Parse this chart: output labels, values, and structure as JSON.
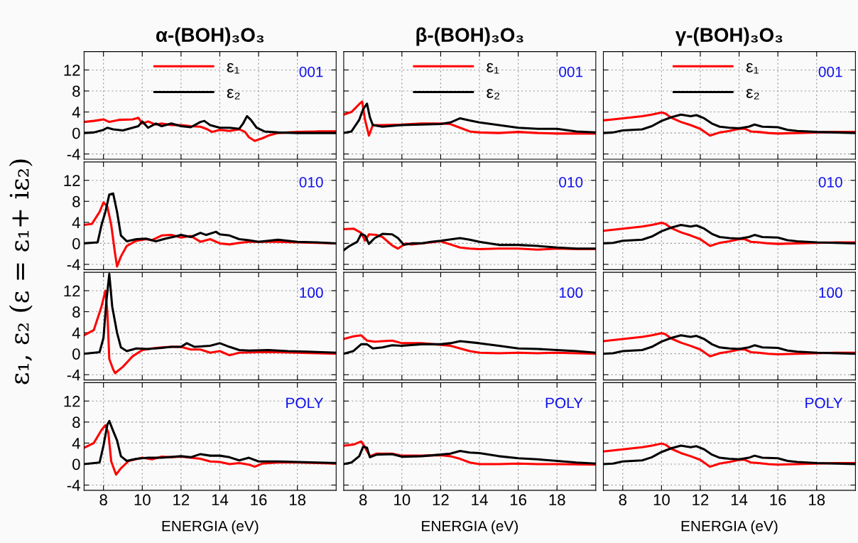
{
  "chart_data": [
    {
      "type": "line",
      "title": "α-(BOH)₃O₃",
      "ylabel": "ε₁, ε₂ (ε = ε₁+ iε₂)",
      "annotations": [
        "001"
      ],
      "xlim": [
        7,
        20
      ],
      "xticks": [
        8,
        10,
        12,
        14,
        16,
        18
      ],
      "ylim": [
        -5,
        15.5
      ],
      "yticks": [
        -4,
        0,
        4,
        8,
        12
      ],
      "grid": true,
      "legend": "top",
      "tick_labels": "y",
      "series": [
        {
          "name": "ε₁",
          "color": "#ff0000",
          "x": [
            7,
            7.5,
            8,
            8.3,
            8.8,
            9.5,
            9.8,
            10,
            10.3,
            10.7,
            11,
            11.5,
            12,
            12.5,
            13,
            13.3,
            13.6,
            14,
            14.5,
            15,
            15.3,
            15.5,
            15.8,
            16.2,
            16.5,
            17,
            18,
            19,
            20
          ],
          "values": [
            2.1,
            2.3,
            2.6,
            2.1,
            2.5,
            2.6,
            2.9,
            1.8,
            2.2,
            1.6,
            1.8,
            1.5,
            1.5,
            1.3,
            1.2,
            0.8,
            0.2,
            0.6,
            0.4,
            0.7,
            0.2,
            -0.8,
            -1.5,
            -1.0,
            -0.5,
            0,
            0.2,
            0.3,
            0.3
          ]
        },
        {
          "name": "ε₂",
          "color": "#000000",
          "x": [
            7,
            7.5,
            8,
            8.2,
            8.5,
            9,
            9.5,
            9.8,
            10,
            10.3,
            10.7,
            11,
            11.5,
            12,
            12.5,
            13,
            13.2,
            13.5,
            14,
            14.5,
            15,
            15.2,
            15.4,
            15.6,
            15.9,
            16.3,
            17,
            18,
            20
          ],
          "values": [
            0,
            0.1,
            0.6,
            1.0,
            0.7,
            0.5,
            1.0,
            1.3,
            2.2,
            1.0,
            1.8,
            1.3,
            1.8,
            1.3,
            1.1,
            2.1,
            2.3,
            1.5,
            1.0,
            1.0,
            0.8,
            1.8,
            3.2,
            2.5,
            1.0,
            0.3,
            0.1,
            0,
            0
          ]
        }
      ]
    },
    {
      "type": "line",
      "title": "β-(BOH)₃O₃",
      "annotations": [
        "001"
      ],
      "xlim": [
        7,
        20
      ],
      "xticks": [
        8,
        10,
        12,
        14,
        16,
        18
      ],
      "ylim": [
        -5,
        15.5
      ],
      "yticks": [
        -4,
        0,
        4,
        8,
        12
      ],
      "grid": true,
      "legend": "top",
      "tick_labels": false,
      "series": [
        {
          "name": "ε₁",
          "color": "#ff0000",
          "x": [
            7,
            7.4,
            7.8,
            7.95,
            8.1,
            8.3,
            8.5,
            9,
            10,
            11,
            12,
            12.5,
            13,
            13.5,
            14,
            15,
            16,
            17,
            18,
            19,
            20
          ],
          "values": [
            3.5,
            4.0,
            5.5,
            6.0,
            2.5,
            -0.5,
            1.5,
            1.5,
            1.6,
            1.8,
            1.8,
            1.7,
            1.0,
            0.3,
            0.1,
            0,
            0.2,
            0,
            -0.1,
            -0.1,
            -0.1
          ]
        },
        {
          "name": "ε₂",
          "color": "#000000",
          "x": [
            7,
            7.4,
            7.8,
            8.0,
            8.2,
            8.35,
            8.5,
            9,
            10,
            11,
            12,
            12.5,
            13,
            13.5,
            14,
            15,
            16,
            17,
            18,
            19,
            20
          ],
          "values": [
            0,
            0.3,
            2.5,
            4.5,
            5.6,
            3,
            1.5,
            1.2,
            1.5,
            1.6,
            1.7,
            2.0,
            2.8,
            2.4,
            2.0,
            1.5,
            1.0,
            0.8,
            0.8,
            0.3,
            0.1
          ]
        }
      ]
    },
    {
      "type": "line",
      "title": "γ-(BOH)₃O₃",
      "annotations": [
        "001"
      ],
      "xlim": [
        7,
        20
      ],
      "xticks": [
        8,
        10,
        12,
        14,
        16,
        18
      ],
      "ylim": [
        -5,
        15.5
      ],
      "yticks": [
        -4,
        0,
        4,
        8,
        12
      ],
      "grid": true,
      "legend": "top",
      "tick_labels": false,
      "series": [
        {
          "name": "ε₁",
          "color": "#ff0000",
          "x": [
            7,
            7.5,
            8,
            8.5,
            9,
            9.5,
            10,
            10.2,
            10.5,
            11,
            11.5,
            12,
            12.5,
            13,
            13.5,
            14,
            14.3,
            14.6,
            15,
            15.5,
            16,
            17,
            18,
            19,
            20
          ],
          "values": [
            2.4,
            2.6,
            2.8,
            3.0,
            3.2,
            3.5,
            3.9,
            3.7,
            2.9,
            2.1,
            1.5,
            0.8,
            -0.5,
            0.1,
            0.4,
            0.8,
            0.8,
            0.3,
            0.2,
            0.0,
            -0.1,
            0,
            0.1,
            0.2,
            0.2
          ]
        },
        {
          "name": "ε₂",
          "color": "#000000",
          "x": [
            7,
            7.5,
            8,
            8.5,
            9,
            9.5,
            10,
            10.5,
            11,
            11.5,
            11.8,
            12.2,
            12.6,
            13,
            13.5,
            14,
            14.5,
            14.8,
            15.2,
            16,
            16.5,
            17,
            18,
            19,
            20
          ],
          "values": [
            0,
            0.1,
            0.5,
            0.6,
            0.7,
            1.3,
            2.3,
            3.0,
            3.5,
            3.2,
            3.4,
            2.8,
            1.8,
            1.2,
            1.0,
            0.9,
            1.2,
            1.6,
            1.2,
            1.1,
            0.6,
            0.4,
            0.2,
            0.1,
            0
          ]
        }
      ]
    },
    {
      "type": "line",
      "annotations": [
        "010"
      ],
      "xlim": [
        7,
        20
      ],
      "xticks": [
        8,
        10,
        12,
        14,
        16,
        18
      ],
      "ylim": [
        -5,
        15.5
      ],
      "yticks": [
        -4,
        0,
        4,
        8,
        12
      ],
      "grid": true,
      "tick_labels": "y",
      "series": [
        {
          "color": "#ff0000",
          "x": [
            7,
            7.4,
            7.8,
            8.0,
            8.2,
            8.4,
            8.6,
            8.7,
            8.9,
            9.2,
            9.7,
            10.2,
            10.5,
            11,
            11.5,
            12,
            12.5,
            13,
            13.5,
            14,
            14.5,
            15,
            15.5,
            16,
            17,
            18,
            20
          ],
          "values": [
            3.5,
            3.7,
            6.0,
            7.8,
            7.0,
            3.5,
            -2.0,
            -4.4,
            -2.5,
            -0.5,
            0.5,
            0.8,
            0.6,
            1.5,
            1.6,
            1.1,
            1.4,
            0.3,
            0.8,
            0,
            -0.2,
            0.1,
            0.3,
            0.3,
            0.3,
            0.2,
            0
          ]
        },
        {
          "color": "#000000",
          "x": [
            7,
            7.7,
            7.9,
            8.1,
            8.3,
            8.5,
            8.7,
            8.9,
            9.2,
            9.7,
            10.2,
            10.7,
            11.2,
            11.7,
            12,
            12.5,
            13,
            13.3,
            13.8,
            14,
            14.5,
            15,
            15.5,
            16,
            17,
            18,
            19,
            20
          ],
          "values": [
            0,
            0.2,
            3.5,
            6,
            9.3,
            9.5,
            6,
            1.5,
            0.4,
            0.8,
            0.9,
            0.4,
            0.9,
            1.3,
            1.6,
            1.2,
            2.0,
            1.6,
            2.2,
            1.7,
            1.5,
            0.8,
            0.6,
            0.3,
            0.7,
            0.3,
            0.2,
            0
          ]
        }
      ]
    },
    {
      "type": "line",
      "annotations": [
        "010"
      ],
      "xlim": [
        7,
        20
      ],
      "xticks": [
        8,
        10,
        12,
        14,
        16,
        18
      ],
      "ylim": [
        -5,
        15.5
      ],
      "yticks": [
        -4,
        0,
        4,
        8,
        12
      ],
      "grid": true,
      "tick_labels": false,
      "series": [
        {
          "color": "#ff0000",
          "x": [
            7,
            7.5,
            7.9,
            8.1,
            8.3,
            8.7,
            9,
            9.5,
            9.8,
            10.2,
            10.5,
            11,
            11.5,
            12,
            12.5,
            13,
            13.5,
            14,
            15,
            16,
            17,
            18,
            19,
            20
          ],
          "values": [
            2.7,
            2.8,
            2.0,
            0.5,
            1.7,
            1.6,
            1.2,
            -0.4,
            -1.0,
            0,
            -0.2,
            0,
            0.2,
            0.4,
            -0.2,
            -0.8,
            -1.0,
            -1.1,
            -1.0,
            -1.0,
            -1.2,
            -1.0,
            -1.1,
            -1.1
          ]
        },
        {
          "color": "#000000",
          "x": [
            7,
            7.3,
            7.7,
            7.9,
            8.1,
            8.3,
            8.6,
            9,
            9.5,
            9.8,
            10.1,
            10.5,
            11,
            11.5,
            12,
            12.6,
            13,
            13.5,
            14,
            15,
            16,
            17,
            18,
            19,
            20
          ],
          "values": [
            -1.3,
            -0.5,
            0.3,
            1.8,
            1.5,
            -0.1,
            1.0,
            1.8,
            1.7,
            1.0,
            -0.3,
            0,
            0,
            0.3,
            0.5,
            0.8,
            1.0,
            0.7,
            0.3,
            -0.3,
            -0.3,
            -0.5,
            -0.8,
            -1.0,
            -1.0
          ]
        }
      ]
    },
    {
      "type": "line",
      "annotations": [
        "010"
      ],
      "xlim": [
        7,
        20
      ],
      "xticks": [
        8,
        10,
        12,
        14,
        16,
        18
      ],
      "ylim": [
        -5,
        15.5
      ],
      "yticks": [
        -4,
        0,
        4,
        8,
        12
      ],
      "grid": true,
      "tick_labels": false,
      "series": [
        {
          "color": "#ff0000",
          "x": [
            7,
            7.5,
            8,
            8.5,
            9,
            9.5,
            10,
            10.2,
            10.5,
            11,
            11.5,
            12,
            12.5,
            13,
            13.5,
            14,
            14.3,
            14.6,
            15,
            15.5,
            16,
            17,
            18,
            19,
            20
          ],
          "values": [
            2.4,
            2.6,
            2.8,
            3.0,
            3.2,
            3.5,
            3.9,
            3.7,
            2.9,
            2.1,
            1.5,
            0.8,
            -0.5,
            0.1,
            0.4,
            0.8,
            0.8,
            0.3,
            0.2,
            0.0,
            -0.1,
            0,
            0.1,
            0.2,
            0.2
          ]
        },
        {
          "color": "#000000",
          "x": [
            7,
            7.5,
            8,
            8.5,
            9,
            9.5,
            10,
            10.5,
            11,
            11.5,
            11.8,
            12.2,
            12.6,
            13,
            13.5,
            14,
            14.5,
            14.8,
            15.2,
            16,
            16.5,
            17,
            18,
            19,
            20
          ],
          "values": [
            0,
            0.1,
            0.5,
            0.6,
            0.7,
            1.3,
            2.3,
            3.0,
            3.5,
            3.2,
            3.4,
            2.8,
            1.8,
            1.2,
            1.0,
            0.9,
            1.2,
            1.6,
            1.2,
            1.1,
            0.6,
            0.4,
            0.2,
            0.1,
            0
          ]
        }
      ]
    },
    {
      "type": "line",
      "annotations": [
        "100"
      ],
      "xlim": [
        7,
        20
      ],
      "xticks": [
        8,
        10,
        12,
        14,
        16,
        18
      ],
      "ylim": [
        -5,
        15.5
      ],
      "yticks": [
        -4,
        0,
        4,
        8,
        12
      ],
      "grid": true,
      "tick_labels": "y",
      "series": [
        {
          "color": "#ff0000",
          "x": [
            7,
            7.5,
            7.9,
            8.1,
            8.2,
            8.3,
            8.5,
            8.6,
            9.0,
            9.5,
            10,
            10.5,
            11,
            11.5,
            12,
            12.5,
            13,
            13.5,
            14,
            14.5,
            15,
            16,
            17,
            18,
            20
          ],
          "values": [
            3.5,
            4.5,
            9.0,
            12,
            8,
            -1.0,
            -3.0,
            -3.7,
            -2.5,
            -0.5,
            0.7,
            1.0,
            1.2,
            1.3,
            1.3,
            0.8,
            0.8,
            0.2,
            0.5,
            -0.3,
            0.2,
            0.3,
            0.3,
            0.2,
            0
          ]
        },
        {
          "color": "#000000",
          "x": [
            7,
            7.8,
            8.0,
            8.15,
            8.3,
            8.45,
            8.7,
            8.9,
            9.2,
            9.7,
            10.3,
            11,
            11.5,
            12,
            12.3,
            12.7,
            13.5,
            14,
            14.5,
            15,
            15.5,
            16.5,
            17.5,
            18.5,
            20
          ],
          "values": [
            0,
            0.3,
            3,
            10,
            15.2,
            9,
            4,
            1.2,
            0.5,
            1.0,
            0.9,
            1.1,
            1.3,
            1.3,
            2.0,
            1.3,
            1.5,
            2.0,
            1.3,
            0.7,
            0.6,
            0.7,
            0.5,
            0.4,
            0.2
          ]
        }
      ]
    },
    {
      "type": "line",
      "annotations": [
        "100"
      ],
      "xlim": [
        7,
        20
      ],
      "xticks": [
        8,
        10,
        12,
        14,
        16,
        18
      ],
      "ylim": [
        -5,
        15.5
      ],
      "yticks": [
        -4,
        0,
        4,
        8,
        12
      ],
      "grid": true,
      "tick_labels": false,
      "series": [
        {
          "color": "#ff0000",
          "x": [
            7,
            7.5,
            7.9,
            8.2,
            8.6,
            9,
            9.5,
            10,
            11,
            12,
            12.5,
            13,
            13.5,
            14,
            15,
            16,
            17,
            18,
            20
          ],
          "values": [
            2.8,
            3.3,
            3.5,
            2.5,
            2.3,
            2.4,
            2.5,
            2.0,
            2.0,
            1.7,
            1.5,
            1.0,
            0.5,
            0.2,
            0.1,
            0.2,
            0.1,
            0.2,
            0
          ]
        },
        {
          "color": "#000000",
          "x": [
            7,
            7.5,
            7.9,
            8.2,
            8.5,
            9,
            9.5,
            10,
            11,
            12,
            12.5,
            13,
            14,
            15,
            16,
            17,
            18,
            19,
            20
          ],
          "values": [
            0,
            0.5,
            1.8,
            1.8,
            1.0,
            1.2,
            1.6,
            1.5,
            1.8,
            1.8,
            2.0,
            2.4,
            2.0,
            1.5,
            1.0,
            0.9,
            0.7,
            0.5,
            0.2
          ]
        }
      ]
    },
    {
      "type": "line",
      "annotations": [
        "100"
      ],
      "xlim": [
        7,
        20
      ],
      "xticks": [
        8,
        10,
        12,
        14,
        16,
        18
      ],
      "ylim": [
        -5,
        15.5
      ],
      "yticks": [
        -4,
        0,
        4,
        8,
        12
      ],
      "grid": true,
      "tick_labels": false,
      "series": [
        {
          "color": "#ff0000",
          "x": [
            7,
            7.5,
            8,
            8.5,
            9,
            9.5,
            10,
            10.2,
            10.5,
            11,
            11.5,
            12,
            12.5,
            13,
            13.5,
            14,
            14.3,
            14.6,
            15,
            15.5,
            16,
            17,
            18,
            19,
            20
          ],
          "values": [
            2.4,
            2.6,
            2.8,
            3.0,
            3.2,
            3.5,
            3.9,
            3.7,
            2.9,
            2.1,
            1.5,
            0.8,
            -0.5,
            0.1,
            0.4,
            0.8,
            0.8,
            0.3,
            0.2,
            0.0,
            -0.1,
            0,
            0.1,
            0.2,
            0.2
          ]
        },
        {
          "color": "#000000",
          "x": [
            7,
            7.5,
            8,
            8.5,
            9,
            9.5,
            10,
            10.5,
            11,
            11.5,
            11.8,
            12.2,
            12.6,
            13,
            13.5,
            14,
            14.5,
            14.8,
            15.2,
            16,
            16.5,
            17,
            18,
            19,
            20
          ],
          "values": [
            0,
            0.1,
            0.5,
            0.6,
            0.7,
            1.3,
            2.3,
            3.0,
            3.5,
            3.2,
            3.4,
            2.8,
            1.8,
            1.2,
            1.0,
            0.9,
            1.2,
            1.6,
            1.2,
            1.1,
            0.6,
            0.4,
            0.2,
            0.1,
            0
          ]
        }
      ]
    },
    {
      "type": "line",
      "xlabel": "ENERGIA (eV)",
      "annotations": [
        "POLY"
      ],
      "xlim": [
        7,
        20
      ],
      "xticks": [
        8,
        10,
        12,
        14,
        16,
        18
      ],
      "ylim": [
        -5,
        15.5
      ],
      "yticks": [
        -4,
        0,
        4,
        8,
        12
      ],
      "grid": true,
      "series": [
        {
          "color": "#ff0000",
          "x": [
            7,
            7.5,
            7.9,
            8.1,
            8.25,
            8.4,
            8.65,
            8.9,
            9.3,
            10,
            10.5,
            11,
            11.5,
            12,
            12.5,
            13,
            13.5,
            14,
            14.5,
            15,
            15.5,
            15.8,
            16.2,
            17,
            18,
            20
          ],
          "values": [
            3.1,
            4.0,
            6.5,
            7.4,
            6,
            0.5,
            -2.0,
            -0.8,
            0.6,
            1.2,
            0.9,
            1.4,
            1.3,
            1.4,
            1.2,
            1.0,
            0.5,
            0.4,
            0.0,
            0.2,
            -0.1,
            -0.5,
            0.1,
            0.3,
            0.3,
            0.1
          ]
        },
        {
          "color": "#000000",
          "x": [
            7,
            7.8,
            8.0,
            8.2,
            8.3,
            8.5,
            8.7,
            8.9,
            9.2,
            9.7,
            10.3,
            11,
            12,
            12.5,
            13,
            13.5,
            14,
            14.5,
            15,
            15.5,
            16,
            17,
            18,
            20
          ],
          "values": [
            0,
            0.3,
            3.5,
            7.5,
            8.2,
            6.3,
            4.5,
            1.5,
            0.6,
            1.0,
            1.2,
            1.2,
            1.5,
            1.3,
            1.9,
            1.6,
            1.6,
            1.3,
            0.7,
            1.2,
            0.5,
            0.5,
            0.4,
            0.2
          ]
        }
      ]
    },
    {
      "type": "line",
      "xlabel": "ENERGIA (eV)",
      "annotations": [
        "POLY"
      ],
      "xlim": [
        7,
        20
      ],
      "xticks": [
        8,
        10,
        12,
        14,
        16,
        18
      ],
      "ylim": [
        -5,
        15.5
      ],
      "yticks": [
        -4,
        0,
        4,
        8,
        12
      ],
      "grid": true,
      "tick_labels": "x",
      "series": [
        {
          "color": "#ff0000",
          "x": [
            7,
            7.5,
            7.9,
            8.05,
            8.2,
            8.35,
            8.7,
            9.5,
            10,
            11,
            12,
            12.5,
            13,
            13.5,
            14,
            15,
            16,
            17,
            18,
            20
          ],
          "values": [
            3.5,
            3.7,
            4.3,
            3.5,
            2.5,
            1.5,
            2.0,
            2.0,
            1.6,
            1.6,
            1.7,
            1.5,
            1.0,
            0.3,
            0,
            0,
            0.1,
            0,
            0,
            -0.1
          ]
        },
        {
          "color": "#000000",
          "x": [
            7,
            7.4,
            7.8,
            8.0,
            8.2,
            8.35,
            8.7,
            9.5,
            10,
            11,
            12,
            12.5,
            13,
            13.5,
            14,
            15,
            16,
            17,
            18,
            19,
            20
          ],
          "values": [
            0,
            0.3,
            1.5,
            3.3,
            3.1,
            1.3,
            1.8,
            1.9,
            1.4,
            1.5,
            1.8,
            2.0,
            2.5,
            2.2,
            2.1,
            1.5,
            1.1,
            0.9,
            0.6,
            0.3,
            0.1
          ]
        }
      ]
    },
    {
      "type": "line",
      "xlabel": "ENERGIA (eV)",
      "annotations": [
        "POLY"
      ],
      "xlim": [
        7,
        20
      ],
      "xticks": [
        8,
        10,
        12,
        14,
        16,
        18
      ],
      "ylim": [
        -5,
        15.5
      ],
      "yticks": [
        -4,
        0,
        4,
        8,
        12
      ],
      "grid": true,
      "tick_labels": "x",
      "series": [
        {
          "color": "#ff0000",
          "x": [
            7,
            7.5,
            8,
            8.5,
            9,
            9.5,
            10,
            10.2,
            10.5,
            11,
            11.5,
            12,
            12.5,
            13,
            13.5,
            14,
            14.3,
            14.6,
            15,
            15.5,
            16,
            17,
            18,
            19,
            20
          ],
          "values": [
            2.4,
            2.6,
            2.8,
            3.0,
            3.2,
            3.5,
            3.9,
            3.7,
            2.9,
            2.1,
            1.5,
            0.8,
            -0.5,
            0.1,
            0.4,
            0.8,
            0.8,
            0.3,
            0.2,
            0.0,
            -0.1,
            0,
            0.1,
            0.2,
            0.2
          ]
        },
        {
          "color": "#000000",
          "x": [
            7,
            7.5,
            8,
            8.5,
            9,
            9.5,
            10,
            10.5,
            11,
            11.5,
            11.8,
            12.2,
            12.6,
            13,
            13.5,
            14,
            14.5,
            14.8,
            15.2,
            16,
            16.5,
            17,
            18,
            19,
            20
          ],
          "values": [
            0,
            0.1,
            0.5,
            0.6,
            0.7,
            1.3,
            2.3,
            3.0,
            3.5,
            3.2,
            3.4,
            2.8,
            1.8,
            1.2,
            1.0,
            0.9,
            1.2,
            1.6,
            1.2,
            1.1,
            0.6,
            0.4,
            0.2,
            0.1,
            0
          ]
        }
      ]
    }
  ]
}
